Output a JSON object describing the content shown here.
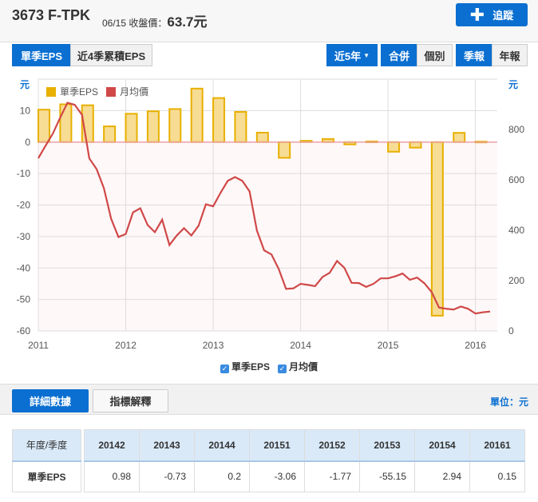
{
  "header": {
    "title": "3673 F-TPK",
    "date": "06/15",
    "price_label": "收盤價：",
    "price": "63.7元",
    "follow_label": "追蹤"
  },
  "toolbar": {
    "eps_tabs": [
      "單季EPS",
      "近4季累積EPS"
    ],
    "range": "近5年",
    "scope": [
      "合併",
      "個別"
    ],
    "period": [
      "季報",
      "年報"
    ]
  },
  "chart_data": {
    "type": "bar+line",
    "left_unit": "元",
    "right_unit": "元",
    "legend": [
      "單季EPS",
      "月均價"
    ],
    "left_ylim": [
      -60,
      20
    ],
    "left_ticks": [
      10,
      0,
      -10,
      -20,
      -30,
      -40,
      -50,
      -60
    ],
    "right_ylim": [
      0,
      1000
    ],
    "right_ticks": [
      800,
      600,
      400,
      200,
      0
    ],
    "xlim": [
      2011,
      2016.25
    ],
    "x_ticks": [
      "2011",
      "2012",
      "2013",
      "2014",
      "2015",
      "2016"
    ],
    "eps_series": {
      "name": "單季EPS",
      "start": "2011Q1",
      "values": [
        10.3,
        12,
        11.7,
        5,
        9,
        9.8,
        10.5,
        17,
        14,
        9.6,
        3,
        -5,
        0.4,
        0.98,
        -0.73,
        0.2,
        -3.06,
        -1.77,
        -55.15,
        2.94,
        0.15
      ],
      "color": "#e8b000"
    },
    "price_series": {
      "name": "月均價",
      "start": "2011-01",
      "values": [
        686,
        736,
        784,
        847,
        906,
        898,
        858,
        685,
        643,
        567,
        445,
        373,
        385,
        471,
        487,
        421,
        392,
        442,
        341,
        379,
        408,
        379,
        418,
        503,
        495,
        548,
        596,
        611,
        596,
        554,
        399,
        320,
        304,
        246,
        167,
        169,
        187,
        183,
        178,
        214,
        231,
        278,
        251,
        191,
        190,
        175,
        187,
        209,
        209,
        217,
        228,
        203,
        212,
        189,
        154,
        93,
        88,
        85,
        97,
        88,
        69,
        74,
        77
      ],
      "color": "#d04848"
    }
  },
  "checkboxes": [
    "單季EPS",
    "月均價"
  ],
  "detail": {
    "tabs": [
      "詳細數據",
      "指標解釋"
    ],
    "unit": "單位：元"
  },
  "table": {
    "corner": "年度/季度",
    "row_label": "單季EPS",
    "columns": [
      "20142",
      "20143",
      "20144",
      "20151",
      "20152",
      "20153",
      "20154",
      "20161"
    ],
    "values": [
      "0.98",
      "-0.73",
      "0.2",
      "-3.06",
      "-1.77",
      "-55.15",
      "2.94",
      "0.15"
    ]
  }
}
